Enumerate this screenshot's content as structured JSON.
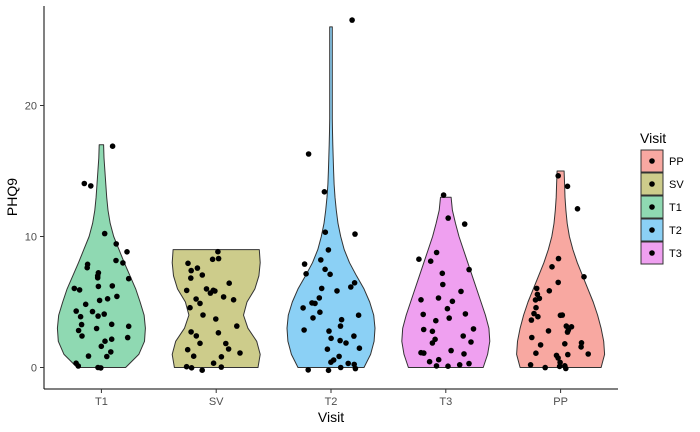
{
  "chart_data": {
    "type": "violin+jitter",
    "xlabel": "Visit",
    "ylabel": "PHQ9",
    "ylim": [
      -1.5,
      27
    ],
    "yticks": [
      0,
      10,
      20
    ],
    "categories": [
      "T1",
      "SV",
      "T2",
      "T3",
      "PP"
    ],
    "legend": {
      "title": "Visit",
      "position": "right",
      "entries": [
        {
          "label": "PP",
          "color": "#F8A8A1"
        },
        {
          "label": "SV",
          "color": "#CDCC8B"
        },
        {
          "label": "T1",
          "color": "#8FD9B2"
        },
        {
          "label": "T2",
          "color": "#8BD0F5"
        },
        {
          "label": "T3",
          "color": "#EFA0F0"
        }
      ]
    },
    "groups": [
      {
        "name": "T1",
        "color": "#8FD9B2",
        "max": 17,
        "profile": [
          [
            0,
            0.55
          ],
          [
            1,
            0.85
          ],
          [
            2,
            0.98
          ],
          [
            3,
            1.0
          ],
          [
            4,
            0.97
          ],
          [
            5,
            0.88
          ],
          [
            6,
            0.78
          ],
          [
            7,
            0.65
          ],
          [
            8,
            0.52
          ],
          [
            9,
            0.4
          ],
          [
            10,
            0.28
          ],
          [
            11,
            0.2
          ],
          [
            12,
            0.15
          ],
          [
            13,
            0.12
          ],
          [
            14,
            0.1
          ],
          [
            15,
            0.08
          ],
          [
            16,
            0.06
          ],
          [
            17,
            0.05
          ]
        ],
        "points": [
          0,
          0,
          0,
          0.5,
          0.8,
          1,
          1,
          1.5,
          2,
          2,
          2.2,
          2.5,
          2.8,
          3,
          3,
          3.2,
          3.5,
          3.8,
          4,
          4,
          4.2,
          4.5,
          5,
          5,
          5.2,
          5.5,
          5.8,
          6,
          6,
          6.3,
          6.7,
          7,
          7,
          7.2,
          7.5,
          8,
          8,
          8.2,
          9,
          9.5,
          10,
          13.8,
          14,
          17
        ]
      },
      {
        "name": "SV",
        "color": "#CDCC8B",
        "max": 9,
        "profile": [
          [
            0,
            0.95
          ],
          [
            1,
            1.0
          ],
          [
            2,
            0.92
          ],
          [
            3,
            0.72
          ],
          [
            4,
            0.62
          ],
          [
            5,
            0.7
          ],
          [
            6,
            0.88
          ],
          [
            7,
            0.97
          ],
          [
            8,
            1.0
          ],
          [
            9,
            0.98
          ]
        ],
        "points": [
          0,
          0,
          0,
          0.2,
          0.5,
          0.8,
          1,
          1,
          1.2,
          1.5,
          2,
          2,
          2.2,
          2.5,
          2.8,
          3,
          3.5,
          4,
          4.5,
          4.8,
          5,
          5,
          5.2,
          5.5,
          5.8,
          6,
          6,
          6.2,
          6.5,
          7,
          7,
          7.2,
          7.5,
          8,
          8.2,
          8.5,
          8.8
        ]
      },
      {
        "name": "T2",
        "color": "#8BD0F5",
        "max": 26,
        "profile": [
          [
            0,
            0.75
          ],
          [
            1,
            0.9
          ],
          [
            2,
            0.98
          ],
          [
            3,
            1.0
          ],
          [
            4,
            0.97
          ],
          [
            5,
            0.88
          ],
          [
            6,
            0.75
          ],
          [
            7,
            0.58
          ],
          [
            8,
            0.42
          ],
          [
            9,
            0.3
          ],
          [
            10,
            0.22
          ],
          [
            11,
            0.16
          ],
          [
            12,
            0.12
          ],
          [
            13,
            0.09
          ],
          [
            14,
            0.07
          ],
          [
            15,
            0.06
          ],
          [
            16,
            0.05
          ],
          [
            17,
            0.04
          ],
          [
            18,
            0.035
          ],
          [
            19,
            0.03
          ],
          [
            20,
            0.03
          ],
          [
            22,
            0.03
          ],
          [
            24,
            0.03
          ],
          [
            26,
            0.03
          ]
        ],
        "points": [
          0,
          0,
          0,
          0,
          0.2,
          0.5,
          0.5,
          0.8,
          1,
          1.2,
          1.5,
          2,
          2,
          2.2,
          2.5,
          2.8,
          3,
          3,
          3.5,
          3.8,
          4,
          4,
          4.5,
          5,
          5,
          5.5,
          5.8,
          6,
          6,
          6.5,
          7,
          7,
          7.5,
          8,
          8,
          9,
          10,
          10.2,
          13.2,
          16.4,
          26.3
        ]
      },
      {
        "name": "T3",
        "color": "#EFA0F0",
        "max": 13,
        "profile": [
          [
            0,
            0.85
          ],
          [
            1,
            0.95
          ],
          [
            2,
            1.0
          ],
          [
            3,
            0.98
          ],
          [
            4,
            0.9
          ],
          [
            5,
            0.8
          ],
          [
            6,
            0.7
          ],
          [
            7,
            0.6
          ],
          [
            8,
            0.5
          ],
          [
            9,
            0.4
          ],
          [
            10,
            0.3
          ],
          [
            11,
            0.22
          ],
          [
            12,
            0.15
          ],
          [
            13,
            0.12
          ]
        ],
        "points": [
          0,
          0,
          0.2,
          0.5,
          0.5,
          0.8,
          1,
          1,
          1.2,
          1.5,
          1.8,
          2,
          2,
          2.5,
          2.8,
          3,
          3,
          3.5,
          3.8,
          4,
          4.2,
          4.5,
          5,
          5,
          5.5,
          6,
          6.5,
          7,
          7.4,
          8,
          8.2,
          9,
          11,
          11.2,
          13
        ]
      },
      {
        "name": "PP",
        "color": "#F8A8A1",
        "max": 15,
        "profile": [
          [
            0,
            0.92
          ],
          [
            1,
            1.0
          ],
          [
            2,
            0.98
          ],
          [
            3,
            0.92
          ],
          [
            4,
            0.84
          ],
          [
            5,
            0.74
          ],
          [
            6,
            0.62
          ],
          [
            7,
            0.5
          ],
          [
            8,
            0.38
          ],
          [
            9,
            0.28
          ],
          [
            10,
            0.2
          ],
          [
            11,
            0.15
          ],
          [
            12,
            0.12
          ],
          [
            13,
            0.1
          ],
          [
            14,
            0.09
          ],
          [
            15,
            0.08
          ]
        ],
        "points": [
          0,
          0,
          0,
          0,
          0.2,
          0.2,
          0.5,
          0.8,
          1,
          1,
          1.2,
          1.5,
          1.8,
          2,
          2,
          2.2,
          2.5,
          2.8,
          3,
          3,
          3.2,
          3.5,
          3.8,
          4,
          4,
          4.2,
          4.5,
          5,
          5.2,
          5.5,
          6,
          6,
          6.5,
          7,
          7.8,
          8.2,
          12,
          13.8,
          14.8
        ]
      }
    ]
  }
}
